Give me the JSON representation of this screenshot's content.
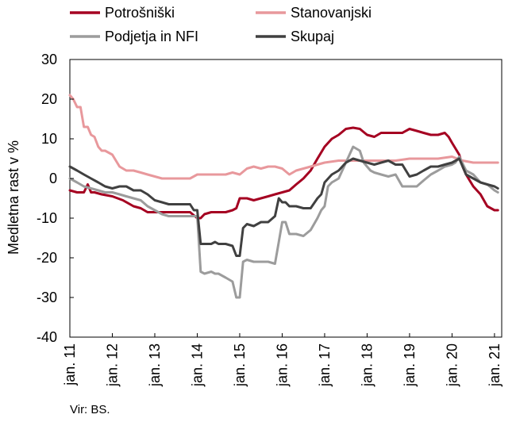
{
  "source": "Vir: BS.",
  "chart_data": {
    "type": "line",
    "title": "",
    "xlabel": "",
    "ylabel": "Medletna rast v %",
    "ylim": [
      -40,
      30
    ],
    "yticks": [
      30,
      20,
      10,
      0,
      -10,
      -20,
      -30,
      -40
    ],
    "xlim": [
      2011.0,
      2021.17
    ],
    "xticks": [
      {
        "label": "jan. 11",
        "x": 2011
      },
      {
        "label": "jan. 12",
        "x": 2012
      },
      {
        "label": "jan. 13",
        "x": 2013
      },
      {
        "label": "jan. 14",
        "x": 2014
      },
      {
        "label": "jan. 15",
        "x": 2015
      },
      {
        "label": "jan. 16",
        "x": 2016
      },
      {
        "label": "jan. 17",
        "x": 2017
      },
      {
        "label": "jan. 18",
        "x": 2018
      },
      {
        "label": "jan. 19",
        "x": 2019
      },
      {
        "label": "jan. 20",
        "x": 2020
      },
      {
        "label": "jan. 21",
        "x": 2021
      }
    ],
    "grid": false,
    "legend": "top",
    "series": [
      {
        "name": "Potrošniški",
        "color": "#a50021",
        "width": 3,
        "x": [
          2011.0,
          2011.17,
          2011.33,
          2011.42,
          2011.5,
          2011.58,
          2011.75,
          2012.0,
          2012.25,
          2012.5,
          2012.67,
          2012.83,
          2013.0,
          2013.17,
          2013.33,
          2013.5,
          2013.67,
          2013.83,
          2014.0,
          2014.08,
          2014.17,
          2014.33,
          2014.5,
          2014.67,
          2014.83,
          2014.92,
          2015.0,
          2015.17,
          2015.33,
          2015.5,
          2015.67,
          2015.83,
          2016.0,
          2016.17,
          2016.33,
          2016.5,
          2016.67,
          2016.83,
          2017.0,
          2017.17,
          2017.33,
          2017.5,
          2017.67,
          2017.83,
          2018.0,
          2018.17,
          2018.33,
          2018.5,
          2018.67,
          2018.83,
          2019.0,
          2019.17,
          2019.33,
          2019.5,
          2019.67,
          2019.83,
          2019.92,
          2020.0,
          2020.17,
          2020.25,
          2020.33,
          2020.5,
          2020.67,
          2020.83,
          2021.0,
          2021.08
        ],
        "y": [
          -3,
          -3.5,
          -3.5,
          -1.5,
          -3.5,
          -3.5,
          -4,
          -4.5,
          -5.5,
          -7,
          -7.5,
          -8.5,
          -8.5,
          -8.5,
          -8.5,
          -8.5,
          -8.5,
          -8.5,
          -10,
          -10,
          -9,
          -8.5,
          -8.5,
          -8.5,
          -8,
          -7.5,
          -5,
          -5,
          -5.5,
          -5,
          -4.5,
          -4,
          -3.5,
          -3,
          -1.5,
          0,
          2,
          5,
          8,
          10,
          11,
          12.5,
          12.8,
          12.5,
          11,
          10.5,
          11.5,
          11.5,
          11.5,
          11.5,
          12.5,
          12,
          11.5,
          11,
          11,
          11.5,
          10.5,
          9,
          6,
          3,
          1,
          -2,
          -4,
          -7,
          -8,
          -8
        ]
      },
      {
        "name": "Stanovanjski",
        "color": "#e8989c",
        "width": 3,
        "x": [
          2011.0,
          2011.08,
          2011.17,
          2011.25,
          2011.33,
          2011.42,
          2011.5,
          2011.58,
          2011.67,
          2011.75,
          2011.83,
          2012.0,
          2012.17,
          2012.33,
          2012.5,
          2012.67,
          2012.83,
          2013.0,
          2013.17,
          2013.33,
          2013.5,
          2013.67,
          2013.83,
          2014.0,
          2014.17,
          2014.33,
          2014.5,
          2014.67,
          2014.83,
          2015.0,
          2015.17,
          2015.33,
          2015.5,
          2015.67,
          2015.83,
          2016.0,
          2016.17,
          2016.33,
          2016.5,
          2016.67,
          2016.83,
          2017.0,
          2017.33,
          2017.67,
          2018.0,
          2018.33,
          2018.67,
          2019.0,
          2019.33,
          2019.67,
          2020.0,
          2020.25,
          2020.5,
          2020.75,
          2021.0,
          2021.08
        ],
        "y": [
          21,
          20,
          18,
          18,
          13,
          13,
          11,
          10.5,
          8,
          7,
          7,
          6,
          3,
          2,
          2,
          1.5,
          1,
          0.5,
          0,
          0,
          0,
          0,
          0,
          1,
          1,
          1,
          1,
          1,
          1.5,
          1,
          2.5,
          3,
          2.5,
          3,
          3,
          2.5,
          1,
          2,
          2.5,
          3,
          3.5,
          4,
          4.5,
          4.5,
          4.5,
          4.5,
          4.5,
          5,
          5,
          5,
          5.5,
          4.5,
          4,
          4,
          4,
          4
        ]
      },
      {
        "name": "Podjetja in NFI",
        "color": "#9c9c9c",
        "width": 3,
        "x": [
          2011.0,
          2011.17,
          2011.33,
          2011.5,
          2011.67,
          2011.83,
          2012.0,
          2012.17,
          2012.33,
          2012.5,
          2012.67,
          2012.83,
          2013.0,
          2013.17,
          2013.33,
          2013.5,
          2013.67,
          2013.83,
          2013.92,
          2014.0,
          2014.08,
          2014.17,
          2014.33,
          2014.42,
          2014.5,
          2014.67,
          2014.83,
          2014.92,
          2015.0,
          2015.08,
          2015.17,
          2015.33,
          2015.5,
          2015.67,
          2015.83,
          2015.92,
          2016.0,
          2016.08,
          2016.17,
          2016.33,
          2016.5,
          2016.67,
          2016.83,
          2016.92,
          2017.0,
          2017.08,
          2017.17,
          2017.33,
          2017.5,
          2017.67,
          2017.83,
          2017.92,
          2018.0,
          2018.08,
          2018.17,
          2018.33,
          2018.5,
          2018.67,
          2018.83,
          2018.92,
          2019.0,
          2019.17,
          2019.33,
          2019.5,
          2019.67,
          2019.83,
          2020.0,
          2020.08,
          2020.17,
          2020.33,
          2020.5,
          2020.67,
          2020.83,
          2021.0,
          2021.08
        ],
        "y": [
          0,
          -1,
          -2,
          -2.5,
          -3,
          -3.5,
          -3.5,
          -4,
          -4.5,
          -5,
          -5.5,
          -7,
          -8,
          -9,
          -9.5,
          -9.5,
          -9.5,
          -9.5,
          -9.5,
          -9.5,
          -23.5,
          -24,
          -23.5,
          -24,
          -24,
          -25,
          -26,
          -30,
          -30,
          -21,
          -20.5,
          -21,
          -21,
          -21,
          -21.5,
          -16,
          -11,
          -11,
          -14,
          -14,
          -14.5,
          -13,
          -10,
          -8,
          -7,
          -2,
          -1,
          0,
          4,
          8,
          7,
          4,
          3,
          2,
          1.5,
          1,
          0.5,
          1,
          -2,
          -2,
          -2,
          -2,
          -0.5,
          1,
          2,
          3,
          3.5,
          4,
          5.5,
          2,
          1,
          -1,
          -1.5,
          -3,
          -3.5
        ]
      },
      {
        "name": "Skupaj",
        "color": "#404040",
        "width": 3,
        "x": [
          2011.0,
          2011.17,
          2011.33,
          2011.5,
          2011.67,
          2011.83,
          2012.0,
          2012.17,
          2012.33,
          2012.5,
          2012.67,
          2012.83,
          2013.0,
          2013.17,
          2013.33,
          2013.5,
          2013.67,
          2013.83,
          2013.92,
          2014.0,
          2014.08,
          2014.17,
          2014.33,
          2014.42,
          2014.5,
          2014.67,
          2014.83,
          2014.92,
          2015.0,
          2015.08,
          2015.17,
          2015.33,
          2015.5,
          2015.67,
          2015.83,
          2015.92,
          2016.0,
          2016.08,
          2016.17,
          2016.33,
          2016.5,
          2016.67,
          2016.83,
          2016.92,
          2017.0,
          2017.17,
          2017.33,
          2017.5,
          2017.67,
          2017.83,
          2018.0,
          2018.17,
          2018.33,
          2018.5,
          2018.67,
          2018.83,
          2019.0,
          2019.17,
          2019.33,
          2019.5,
          2019.67,
          2019.83,
          2020.0,
          2020.17,
          2020.33,
          2020.5,
          2020.67,
          2020.83,
          2021.0,
          2021.08
        ],
        "y": [
          3,
          2,
          1,
          0,
          -1,
          -2,
          -2.5,
          -2,
          -2,
          -3,
          -3,
          -4,
          -5.5,
          -6,
          -6.5,
          -6.5,
          -6.5,
          -6.5,
          -8,
          -8,
          -16.5,
          -16.5,
          -16.5,
          -16,
          -16.5,
          -16.5,
          -17,
          -19.5,
          -19.5,
          -12.5,
          -11.5,
          -12,
          -11,
          -11,
          -9.5,
          -5,
          -6,
          -6,
          -7,
          -7,
          -7.5,
          -7.5,
          -5,
          -4,
          -1,
          1,
          2,
          4,
          5,
          4.5,
          4,
          3.5,
          4,
          4.5,
          3.5,
          3.5,
          0.5,
          1,
          2,
          3,
          3,
          3.5,
          4,
          5,
          1,
          0,
          -1,
          -1.5,
          -2,
          -2.5
        ]
      }
    ]
  }
}
